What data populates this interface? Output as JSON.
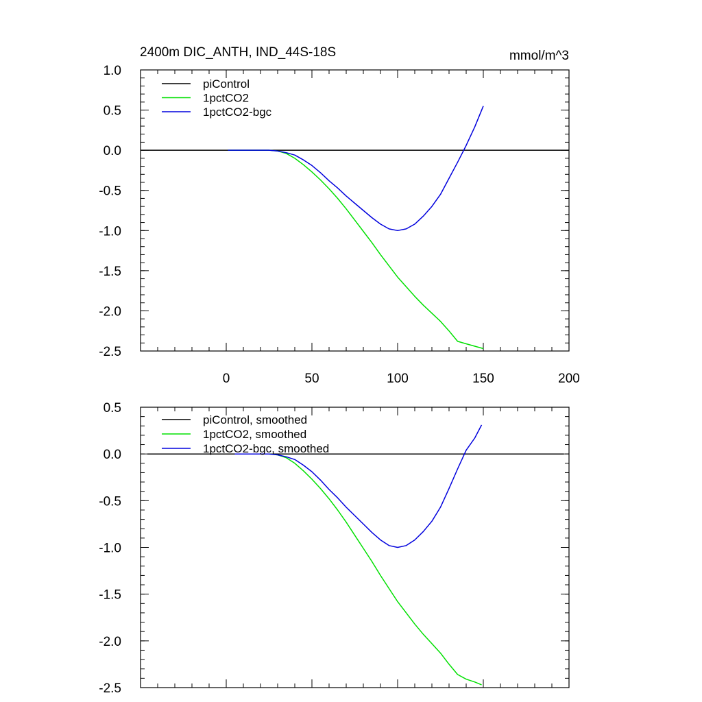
{
  "chart_data": [
    {
      "type": "line",
      "title_left": "2400m DIC_ANTH, IND_44S-18S",
      "title_right": "mmol/m^3",
      "xlabel": "",
      "ylabel": "",
      "xlim": [
        -50,
        200
      ],
      "ylim": [
        -2.5,
        1.0
      ],
      "x_ticks": [
        0,
        50,
        100,
        150,
        200
      ],
      "x_tick_labels": [
        "0",
        "50",
        "100",
        "150",
        "200"
      ],
      "y_ticks": [
        1.0,
        0.5,
        0.0,
        -0.5,
        -1.0,
        -1.5,
        -2.0,
        -2.5
      ],
      "y_tick_labels": [
        "1.0",
        "0.5",
        "0.0",
        "-0.5",
        "-1.0",
        "-1.5",
        "-2.0",
        "-2.5"
      ],
      "legend_position": "top-left",
      "series": [
        {
          "name": "piControl",
          "color": "#000000",
          "x": [
            -50,
            200
          ],
          "y": [
            0.0,
            0.0
          ]
        },
        {
          "name": "1pctCO2",
          "color": "#00e000",
          "x": [
            1,
            10,
            20,
            25,
            30,
            35,
            40,
            45,
            50,
            55,
            60,
            65,
            70,
            75,
            80,
            85,
            90,
            95,
            100,
            105,
            110,
            115,
            120,
            125,
            130,
            135,
            140,
            145,
            150
          ],
          "y": [
            0.0,
            0.0,
            0.0,
            0.0,
            -0.01,
            -0.04,
            -0.1,
            -0.18,
            -0.27,
            -0.37,
            -0.48,
            -0.6,
            -0.73,
            -0.87,
            -1.01,
            -1.15,
            -1.3,
            -1.44,
            -1.58,
            -1.7,
            -1.82,
            -1.93,
            -2.03,
            -2.13,
            -2.25,
            -2.38,
            -2.41,
            -2.44,
            -2.47
          ]
        },
        {
          "name": "1pctCO2-bgc",
          "color": "#0000dd",
          "x": [
            1,
            10,
            20,
            25,
            30,
            35,
            40,
            45,
            50,
            55,
            60,
            65,
            70,
            75,
            80,
            85,
            90,
            95,
            100,
            105,
            110,
            115,
            120,
            125,
            130,
            135,
            140,
            145,
            150
          ],
          "y": [
            0.0,
            0.0,
            0.0,
            0.0,
            -0.01,
            -0.03,
            -0.06,
            -0.12,
            -0.19,
            -0.28,
            -0.38,
            -0.47,
            -0.57,
            -0.66,
            -0.75,
            -0.84,
            -0.92,
            -0.98,
            -1.0,
            -0.98,
            -0.92,
            -0.82,
            -0.7,
            -0.55,
            -0.35,
            -0.15,
            0.06,
            0.29,
            0.55
          ]
        }
      ]
    },
    {
      "type": "line",
      "xlabel": "",
      "ylabel": "",
      "xlim": [
        -50,
        200
      ],
      "ylim": [
        -2.5,
        0.5
      ],
      "x_ticks": [
        0,
        50,
        100,
        150,
        200
      ],
      "y_ticks": [
        0.5,
        0.0,
        -0.5,
        -1.0,
        -1.5,
        -2.0,
        -2.5
      ],
      "y_tick_labels": [
        "0.5",
        "0.0",
        "-0.5",
        "-1.0",
        "-1.5",
        "-2.0",
        "-2.5"
      ],
      "legend_position": "top-left",
      "series": [
        {
          "name": "piControl, smoothed",
          "color": "#000000",
          "x": [
            -46,
            197
          ],
          "y": [
            0.0,
            0.0
          ]
        },
        {
          "name": "1pctCO2, smoothed",
          "color": "#00e000",
          "x": [
            5,
            10,
            20,
            25,
            30,
            35,
            40,
            45,
            50,
            55,
            60,
            65,
            70,
            75,
            80,
            85,
            90,
            95,
            100,
            105,
            110,
            115,
            120,
            125,
            130,
            135,
            140,
            145,
            149
          ],
          "y": [
            0.0,
            0.0,
            0.0,
            0.0,
            -0.01,
            -0.04,
            -0.1,
            -0.18,
            -0.27,
            -0.37,
            -0.48,
            -0.6,
            -0.73,
            -0.87,
            -1.01,
            -1.15,
            -1.3,
            -1.44,
            -1.58,
            -1.7,
            -1.82,
            -1.93,
            -2.03,
            -2.13,
            -2.25,
            -2.36,
            -2.41,
            -2.44,
            -2.47
          ]
        },
        {
          "name": "1pctCO2-bgc, smoothed",
          "color": "#0000dd",
          "x": [
            5,
            10,
            20,
            25,
            30,
            35,
            40,
            45,
            50,
            55,
            60,
            65,
            70,
            75,
            80,
            85,
            90,
            95,
            100,
            105,
            110,
            115,
            120,
            125,
            130,
            135,
            140,
            145,
            149
          ],
          "y": [
            0.0,
            0.0,
            0.0,
            0.0,
            -0.01,
            -0.03,
            -0.06,
            -0.12,
            -0.19,
            -0.28,
            -0.38,
            -0.47,
            -0.57,
            -0.66,
            -0.75,
            -0.84,
            -0.92,
            -0.98,
            -1.0,
            -0.98,
            -0.92,
            -0.83,
            -0.72,
            -0.57,
            -0.37,
            -0.16,
            0.04,
            0.17,
            0.31
          ]
        }
      ]
    }
  ]
}
